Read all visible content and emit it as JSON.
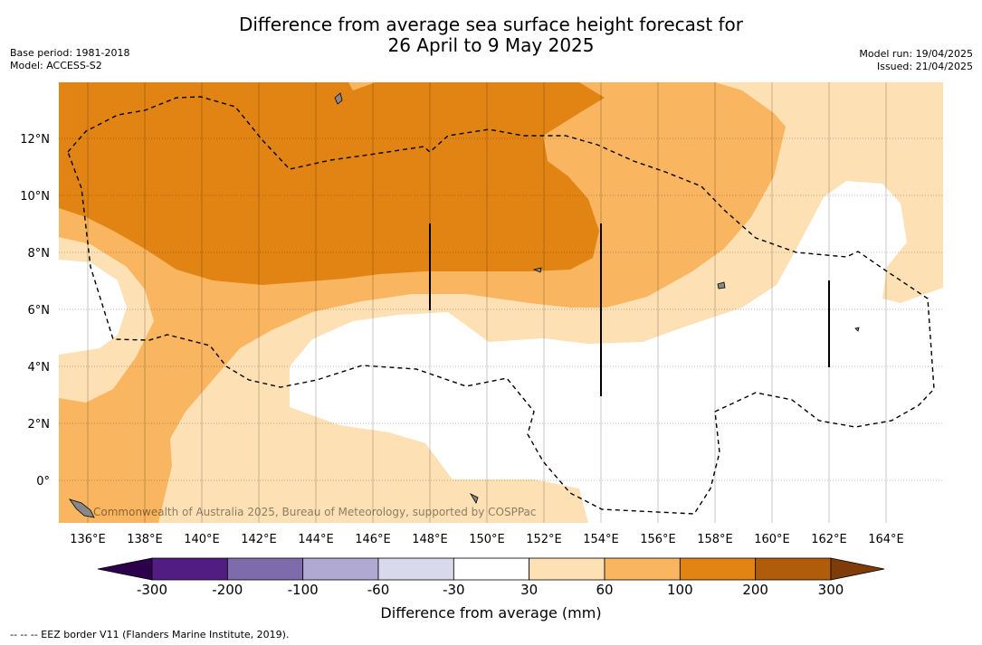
{
  "title_line1": "Difference from average sea surface height forecast for",
  "title_line2": "26 April to 9 May 2025",
  "base_period": "Base period: 1981-2018",
  "model": "Model: ACCESS-S2",
  "model_run": "Model run: 19/04/2025",
  "issued": "Issued: 21/04/2025",
  "watermark": "Commonwealth of Australia 2025, Bureau of Meteorology, supported by COSPPac",
  "lon_ticks": [
    "136°E",
    "138°E",
    "140°E",
    "142°E",
    "144°E",
    "146°E",
    "148°E",
    "150°E",
    "152°E",
    "154°E",
    "156°E",
    "158°E",
    "160°E",
    "162°E",
    "164°E"
  ],
  "lat_ticks": [
    "12°N",
    "10°N",
    "8°N",
    "6°N",
    "4°N",
    "2°N",
    "0°"
  ],
  "colorbar": {
    "title": "Difference from average (mm)",
    "labels": [
      "-300",
      "-200",
      "-100",
      "-60",
      "-30",
      "30",
      "60",
      "100",
      "200",
      "300"
    ],
    "colors": [
      "#521d82",
      "#7e6bab",
      "#b0a9d2",
      "#d9d9ec",
      "#ffffff",
      "#fde0b4",
      "#f9b55f",
      "#e28414",
      "#b05c0b"
    ],
    "extend_low": "#2d004b",
    "extend_high": "#7f3b08"
  },
  "footnote": "--  --  -- EEZ border V11 (Flanders Marine Institute, 2019)."
}
